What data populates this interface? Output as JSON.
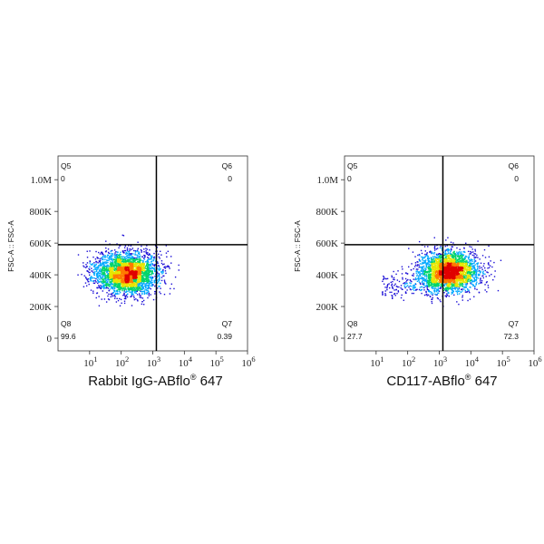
{
  "chart_data": [
    {
      "type": "scatter",
      "subtype": "flow-cytometry-density-dot-plot",
      "xlabel": "Rabbit IgG-ABflo",
      "xlabel_sup": "®",
      "xlabel_tail": " 647",
      "ylabel": "FSC-A :: FSC-A",
      "x_scale": "log",
      "x_range": [
        1,
        1000000
      ],
      "x_ticks": [
        "1",
        "2",
        "3",
        "4",
        "5",
        "6"
      ],
      "y_range": [
        -80000,
        1150000
      ],
      "y_ticks": [
        {
          "value": 0,
          "label": "0"
        },
        {
          "value": 200000,
          "label": "200K"
        },
        {
          "value": 400000,
          "label": "400K"
        },
        {
          "value": 600000,
          "label": "600K"
        },
        {
          "value": 800000,
          "label": "800K"
        },
        {
          "value": 1000000,
          "label": "1.0M"
        }
      ],
      "gate": {
        "x": 1300,
        "y": 590000
      },
      "quadrants": [
        {
          "name": "Q5",
          "percent": "0",
          "position": "top-left"
        },
        {
          "name": "Q6",
          "percent": "0",
          "position": "top-right"
        },
        {
          "name": "Q8",
          "percent": "99.6",
          "position": "bottom-left"
        },
        {
          "name": "Q7",
          "percent": "0.39",
          "position": "bottom-right"
        }
      ],
      "population": {
        "x_center": 150,
        "x_spread_decades": 0.5,
        "y_center": 410000,
        "y_spread": 65000,
        "count": 3200,
        "side_events": 0
      },
      "colors": [
        "#1a0dd6",
        "#00a8ff",
        "#00d46a",
        "#e6e600",
        "#ff7a00",
        "#e00000"
      ]
    },
    {
      "type": "scatter",
      "subtype": "flow-cytometry-density-dot-plot",
      "xlabel": "CD117-ABflo",
      "xlabel_sup": "®",
      "xlabel_tail": " 647",
      "ylabel": "FSC-A :: FSC-A",
      "x_scale": "log",
      "x_range": [
        1,
        1000000
      ],
      "x_ticks": [
        "1",
        "2",
        "3",
        "4",
        "5",
        "6"
      ],
      "y_range": [
        -80000,
        1150000
      ],
      "y_ticks": [
        {
          "value": 0,
          "label": "0"
        },
        {
          "value": 200000,
          "label": "200K"
        },
        {
          "value": 400000,
          "label": "400K"
        },
        {
          "value": 600000,
          "label": "600K"
        },
        {
          "value": 800000,
          "label": "800K"
        },
        {
          "value": 1000000,
          "label": "1.0M"
        }
      ],
      "gate": {
        "x": 1300,
        "y": 590000
      },
      "quadrants": [
        {
          "name": "Q5",
          "percent": "0",
          "position": "top-left"
        },
        {
          "name": "Q6",
          "percent": "0",
          "position": "top-right"
        },
        {
          "name": "Q8",
          "percent": "27.7",
          "position": "bottom-left"
        },
        {
          "name": "Q7",
          "percent": "72.3",
          "position": "bottom-right"
        }
      ],
      "population": {
        "x_center": 2100,
        "x_spread_decades": 0.45,
        "y_center": 420000,
        "y_spread": 62000,
        "count": 3000,
        "side_events": 160
      },
      "colors": [
        "#1a0dd6",
        "#00a8ff",
        "#00d46a",
        "#e6e600",
        "#ff7a00",
        "#e00000"
      ]
    }
  ]
}
